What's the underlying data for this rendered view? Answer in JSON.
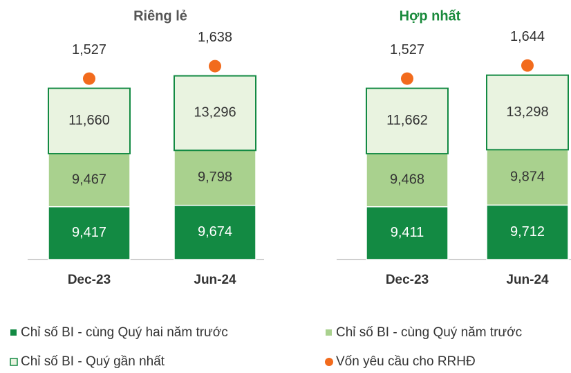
{
  "chart_data": [
    {
      "type": "bar",
      "stacked": true,
      "title": "Riêng lẻ",
      "title_color": "#555555",
      "categories": [
        "Dec-23",
        "Jun-24"
      ],
      "series": [
        {
          "name": "Chỉ số BI - cùng Quý hai năm trước",
          "color": "#138a43",
          "values": [
            9417,
            9674
          ]
        },
        {
          "name": "Chỉ số BI - cùng Quý năm trước",
          "color": "#a9d18e",
          "values": [
            9467,
            9798
          ]
        },
        {
          "name": "Chỉ số BI - Quý gần nhất",
          "color": "#e9f3e0",
          "edge": "#138a43",
          "values": [
            11660,
            13296
          ]
        },
        {
          "name": "Vốn yêu cầu cho RRHĐ",
          "color": "#f26b1d",
          "marker": "dot",
          "values": [
            1527,
            1638
          ]
        }
      ]
    },
    {
      "type": "bar",
      "stacked": true,
      "title": "Hợp nhất",
      "title_color": "#1a8a3c",
      "categories": [
        "Dec-23",
        "Jun-24"
      ],
      "series": [
        {
          "color": "#138a43",
          "values": [
            9411,
            9712
          ]
        },
        {
          "color": "#a9d18e",
          "values": [
            9468,
            9874
          ]
        },
        {
          "color": "#e9f3e0",
          "edge": "#138a43",
          "values": [
            11662,
            13298
          ]
        },
        {
          "color": "#f26b1d",
          "marker": "dot",
          "values": [
            1527,
            1644
          ]
        }
      ]
    }
  ]
}
